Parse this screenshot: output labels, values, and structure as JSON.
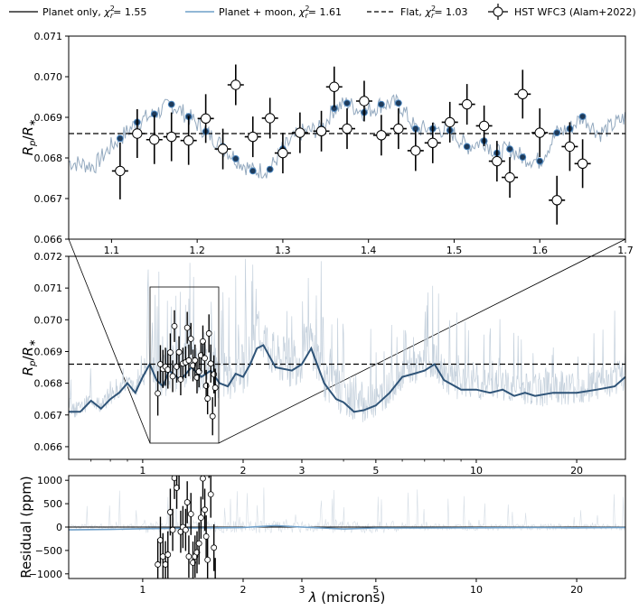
{
  "legend": [
    {
      "label": "Planet only, χ²r = 1.55",
      "style": "solid",
      "color": "#000000",
      "text_main": "Planet only, ",
      "chi_value": "= 1.55"
    },
    {
      "label": "Planet + moon, χ²r = 1.61",
      "style": "solid",
      "color": "#6f9fc8",
      "text_main": "Planet + moon, ",
      "chi_value": "= 1.61"
    },
    {
      "label": "Flat, χ²r = 1.03",
      "style": "dashed",
      "color": "#000000",
      "text_main": "Flat, ",
      "chi_value": "= 1.03"
    },
    {
      "label": "HST WFC3 (Alam+2022)",
      "style": "marker",
      "color": "#000000",
      "text_main": "HST WFC3 (Alam+2022)"
    }
  ],
  "colors": {
    "planet_only": "#2f4f6f",
    "planet_moon": "#6f9fc8",
    "model_light": "#c4d0dc",
    "data_marker_face": "#ffffff",
    "data_marker_edge": "#000000",
    "model_marker": "#1f3b5a",
    "model_marker_alt": "#4a86c0"
  },
  "chart_data": [
    {
      "type": "scatter",
      "panel": "top (zoom)",
      "ylabel": "Rp/R∗",
      "xlim": [
        1.05,
        1.7
      ],
      "ylim": [
        0.066,
        0.071
      ],
      "xticks": [
        "1.1",
        "1.2",
        "1.3",
        "1.4",
        "1.5",
        "1.6",
        "1.7"
      ],
      "yticks": [
        "0.066",
        "0.067",
        "0.068",
        "0.069",
        "0.070",
        "0.071"
      ],
      "flat_level": 0.0686,
      "series": [
        {
          "name": "HST WFC3 (Alam+2022)",
          "x": [
            1.11,
            1.13,
            1.15,
            1.17,
            1.19,
            1.21,
            1.23,
            1.245,
            1.265,
            1.285,
            1.3,
            1.32,
            1.345,
            1.36,
            1.375,
            1.395,
            1.415,
            1.435,
            1.455,
            1.475,
            1.495,
            1.515,
            1.535,
            1.55,
            1.565,
            1.58,
            1.6,
            1.62,
            1.635,
            1.65
          ],
          "y": [
            0.06768,
            0.0686,
            0.06845,
            0.06852,
            0.06843,
            0.06897,
            0.06822,
            0.0698,
            0.06852,
            0.06898,
            0.06812,
            0.06862,
            0.06866,
            0.06975,
            0.06872,
            0.0694,
            0.06856,
            0.06872,
            0.06818,
            0.06837,
            0.06888,
            0.06932,
            0.06879,
            0.06792,
            0.06752,
            0.06957,
            0.06862,
            0.06696,
            0.06828,
            0.06786
          ],
          "yerr": [
            0.0007,
            0.0006,
            0.0006,
            0.0006,
            0.0006,
            0.0006,
            0.0005,
            0.0005,
            0.0005,
            0.0005,
            0.0005,
            0.0005,
            0.0005,
            0.0005,
            0.0005,
            0.0005,
            0.0005,
            0.0005,
            0.0005,
            0.0005,
            0.0005,
            0.0005,
            0.0005,
            0.0005,
            0.0005,
            0.0006,
            0.0006,
            0.0006,
            0.0006,
            0.0006
          ]
        },
        {
          "name": "Planet only (binned)",
          "x": [
            1.11,
            1.13,
            1.15,
            1.17,
            1.19,
            1.21,
            1.23,
            1.245,
            1.265,
            1.285,
            1.3,
            1.32,
            1.345,
            1.36,
            1.375,
            1.395,
            1.415,
            1.435,
            1.455,
            1.475,
            1.495,
            1.515,
            1.535,
            1.55,
            1.565,
            1.58,
            1.6,
            1.62,
            1.635,
            1.65
          ],
          "y": [
            0.06848,
            0.06888,
            0.06908,
            0.06932,
            0.06902,
            0.06865,
            0.06828,
            0.06798,
            0.06768,
            0.06772,
            0.06822,
            0.06862,
            0.06872,
            0.06922,
            0.06935,
            0.06912,
            0.06932,
            0.06935,
            0.06872,
            0.06872,
            0.06868,
            0.06828,
            0.06842,
            0.06812,
            0.06822,
            0.06802,
            0.06792,
            0.06862,
            0.06872,
            0.06902
          ]
        }
      ]
    },
    {
      "type": "line",
      "panel": "middle",
      "ylabel": "Rp/R∗",
      "x_scale": "log",
      "xlim": [
        0.6,
        28
      ],
      "ylim": [
        0.0656,
        0.072
      ],
      "xticks": [
        "1",
        "2",
        "3",
        "5",
        "10",
        "20"
      ],
      "yticks": [
        "0.066",
        "0.067",
        "0.068",
        "0.069",
        "0.070",
        "0.071",
        "0.072"
      ],
      "flat_level": 0.0686,
      "series": [
        {
          "name": "Planet + moon",
          "x": [
            0.6,
            0.65,
            0.7,
            0.75,
            0.8,
            0.85,
            0.9,
            0.95,
            1.0,
            1.05,
            1.1,
            1.15,
            1.2,
            1.3,
            1.4,
            1.5,
            1.6,
            1.7,
            1.8,
            1.9,
            2.0,
            2.1,
            2.2,
            2.3,
            2.5,
            2.8,
            3.0,
            3.2,
            3.5,
            3.8,
            4.0,
            4.3,
            4.6,
            5.0,
            5.5,
            6.0,
            6.5,
            7.0,
            7.5,
            8.0,
            9.0,
            10.0,
            11.0,
            12.0,
            13.0,
            14.0,
            15.0,
            17.0,
            20.0,
            23.0,
            26.0,
            28.0
          ],
          "y": [
            0.0671,
            0.0671,
            0.06745,
            0.0672,
            0.0675,
            0.0677,
            0.068,
            0.0677,
            0.0682,
            0.0686,
            0.0681,
            0.0679,
            0.0684,
            0.0681,
            0.0685,
            0.0682,
            0.0684,
            0.068,
            0.0679,
            0.0683,
            0.0682,
            0.0686,
            0.0691,
            0.0692,
            0.0685,
            0.0684,
            0.0686,
            0.0691,
            0.068,
            0.0675,
            0.0674,
            0.0671,
            0.06715,
            0.0673,
            0.0677,
            0.0682,
            0.0683,
            0.0684,
            0.0686,
            0.0681,
            0.0678,
            0.0678,
            0.0677,
            0.0678,
            0.0676,
            0.0677,
            0.0676,
            0.0677,
            0.0677,
            0.0678,
            0.0679,
            0.0682
          ]
        }
      ]
    },
    {
      "type": "line",
      "panel": "bottom (residual)",
      "ylabel": "Residual (ppm)",
      "xlabel": "λ (microns)",
      "x_scale": "log",
      "xlim": [
        0.6,
        28
      ],
      "ylim": [
        -1100,
        1100
      ],
      "xticks": [
        "1",
        "2",
        "3",
        "5",
        "10",
        "20"
      ],
      "yticks": [
        "−1000",
        "−500",
        "0",
        "500",
        "1000"
      ],
      "series": [
        {
          "name": "Planet + moon residual",
          "x": [
            0.6,
            0.8,
            1.0,
            1.5,
            2.0,
            2.5,
            3.0,
            4.0,
            5.0,
            7.0,
            10.0,
            15.0,
            20.0,
            28.0
          ],
          "y": [
            -60,
            -50,
            -35,
            -20,
            -10,
            30,
            0,
            -40,
            -20,
            -20,
            -15,
            -10,
            -15,
            -10
          ]
        },
        {
          "name": "HST WFC3 residuals",
          "x": [
            1.11,
            1.13,
            1.15,
            1.17,
            1.19,
            1.21,
            1.23,
            1.245,
            1.265,
            1.285,
            1.3,
            1.32,
            1.345,
            1.36,
            1.375,
            1.395,
            1.415,
            1.435,
            1.455,
            1.475,
            1.495,
            1.515,
            1.535,
            1.55,
            1.565,
            1.58,
            1.6,
            1.62,
            1.635,
            1.65
          ],
          "y": [
            -800,
            -280,
            -630,
            -800,
            -590,
            320,
            -60,
            1050,
            840,
            1260,
            -100,
            0,
            -60,
            530,
            -630,
            280,
            -760,
            -630,
            -540,
            -350,
            200,
            1040,
            370,
            -200,
            -700,
            1550,
            700,
            -1700,
            -440,
            -1160
          ],
          "yerr": [
            550,
            500,
            500,
            500,
            500,
            500,
            450,
            450,
            450,
            450,
            450,
            450,
            450,
            450,
            450,
            450,
            450,
            450,
            450,
            450,
            450,
            450,
            450,
            450,
            450,
            500,
            500,
            500,
            500,
            500
          ]
        }
      ]
    }
  ]
}
